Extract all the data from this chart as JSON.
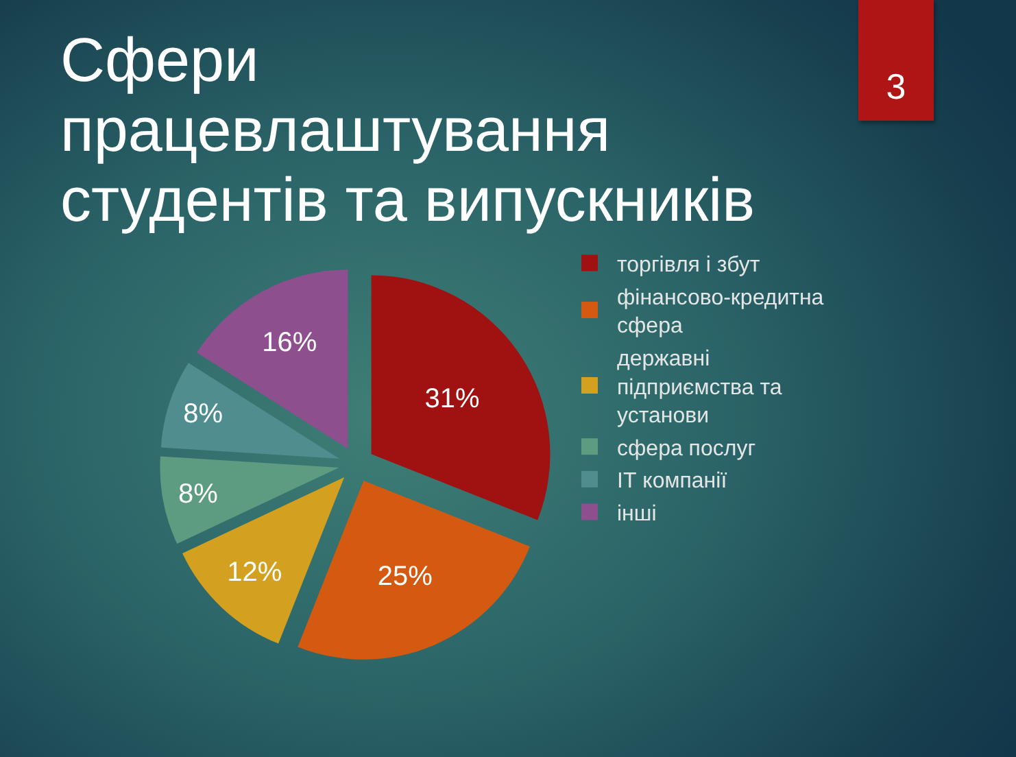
{
  "chart_data": {
    "type": "pie",
    "title": "Сфери працевлаштування студентів та випускників",
    "categories": [
      "торгівля і збут",
      "фінансово-кредитна сфера",
      "державні підприємства та установи",
      "сфера послуг",
      "ІТ компанії",
      "інші"
    ],
    "values": [
      31,
      25,
      12,
      8,
      8,
      16
    ],
    "colors": [
      "#a01212",
      "#d35a10",
      "#d4a020",
      "#5d9c80",
      "#4f8d8e",
      "#8e4f8e"
    ],
    "value_labels": [
      "31%",
      "25%",
      "12%",
      "8%",
      "8%",
      "16%"
    ],
    "legend": "right",
    "annotations": [
      "3"
    ]
  }
}
